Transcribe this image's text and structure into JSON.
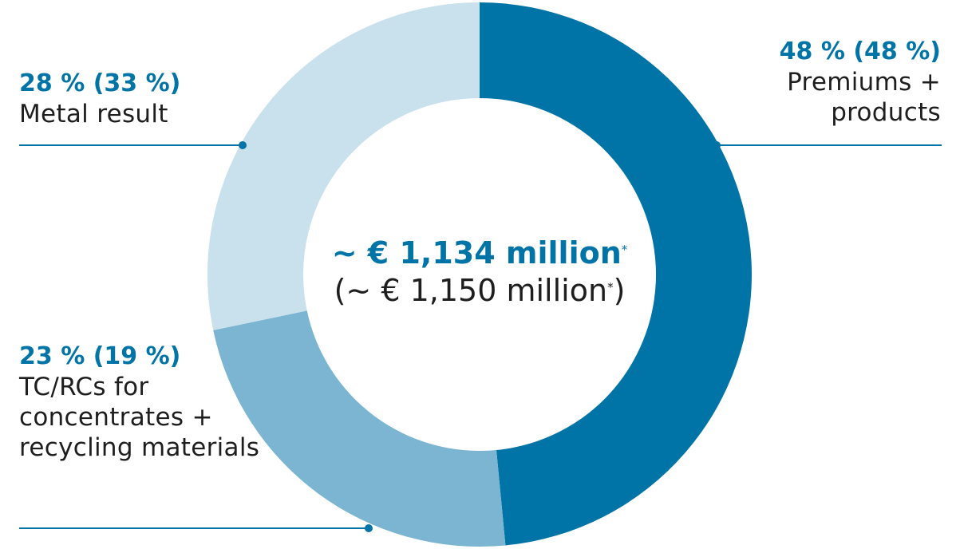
{
  "colors": {
    "accent": "#0074a6",
    "text": "#1e1e1e",
    "leader_line": "#0074a6"
  },
  "chart_data": {
    "type": "pie",
    "donut": true,
    "slices": [
      {
        "label": "Premiums + products",
        "value": 48,
        "prior": 48,
        "pct_text": "48 % (48 %)",
        "color": "#0074a6"
      },
      {
        "label": "TC/RCs for concentrates + recycling materials",
        "value": 23,
        "prior": 19,
        "pct_text": "23 % (19 %)",
        "color": "#7bb5d2"
      },
      {
        "label": "Metal result",
        "value": 28,
        "prior": 33,
        "pct_text": "28 % (33 %)",
        "color": "#c9e0ed"
      }
    ],
    "start_angle_deg": 0,
    "direction": "clockwise",
    "center_main": "~ € 1,134 million",
    "center_sub": "(~ € 1,150 million",
    "center_sub_close": ")",
    "footnote_mark": "*"
  }
}
